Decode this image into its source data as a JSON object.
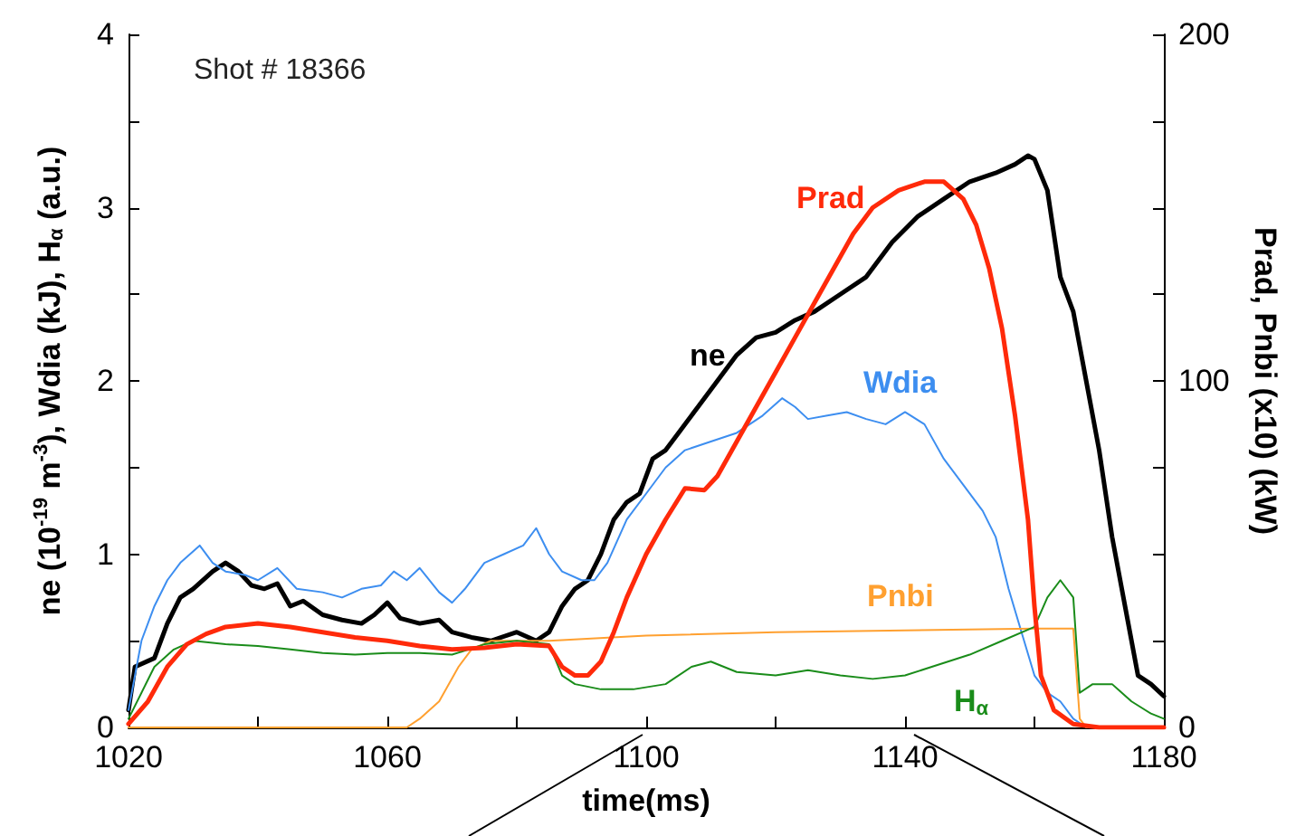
{
  "chart_data": {
    "type": "line",
    "xlabel": "time(ms)",
    "ylabel": "ne (10$^{-19}$ m$^{-3}$), Wdia (kJ), H$_{α}$ (a.u.)",
    "y2label": "Prad, Pnbi (x10) (kW)",
    "annotations": [
      "Shot # 18366"
    ],
    "xlim": [
      1020,
      1180
    ],
    "xticks": [
      1020,
      {
        "value": 1040,
        "label": null
      },
      1060,
      {
        "value": 1080,
        "label": null
      },
      1100,
      {
        "value": 1120,
        "label": null
      },
      1140,
      {
        "value": 1160,
        "label": null
      },
      1180
    ],
    "ylim": [
      0,
      4
    ],
    "yticks": [
      0,
      {
        "value": 0.5,
        "label": null
      },
      1,
      {
        "value": 1.5,
        "label": null
      },
      2,
      {
        "value": 2.5,
        "label": null
      },
      3,
      {
        "value": 3.5,
        "label": null
      },
      4
    ],
    "y2lim": [
      0,
      200
    ],
    "y2ticks": [
      0,
      {
        "value": 25,
        "label": null
      },
      {
        "value": 50,
        "label": null
      },
      {
        "value": 75,
        "label": null
      },
      100,
      {
        "value": 125,
        "label": null
      },
      {
        "value": 150,
        "label": null
      },
      {
        "value": 175,
        "label": null
      },
      200
    ],
    "grid": false,
    "legend": false,
    "marker": "none",
    "line_style": "solid",
    "series": [
      {
        "name": "ne",
        "color": "#000000",
        "x": [
          1020,
          1021,
          1024,
          1026,
          1028,
          1030,
          1033,
          1035,
          1037,
          1039,
          1041,
          1043,
          1045,
          1047,
          1050,
          1053,
          1056,
          1058,
          1060,
          1062,
          1065,
          1068,
          1070,
          1073,
          1076,
          1080,
          1083,
          1085,
          1087,
          1089,
          1091,
          1093,
          1095,
          1097,
          1099,
          1101,
          1103,
          1105,
          1108,
          1111,
          1114,
          1117,
          1120,
          1123,
          1126,
          1130,
          1134,
          1138,
          1142,
          1146,
          1150,
          1154,
          1157,
          1159,
          1160,
          1162,
          1164,
          1166,
          1168,
          1170,
          1172,
          1174,
          1176,
          1178,
          1180
        ],
        "values": [
          0.1,
          0.35,
          0.4,
          0.6,
          0.75,
          0.8,
          0.9,
          0.95,
          0.9,
          0.82,
          0.8,
          0.83,
          0.7,
          0.73,
          0.65,
          0.62,
          0.6,
          0.65,
          0.72,
          0.63,
          0.6,
          0.62,
          0.55,
          0.52,
          0.5,
          0.55,
          0.5,
          0.55,
          0.7,
          0.8,
          0.85,
          1.0,
          1.2,
          1.3,
          1.35,
          1.55,
          1.6,
          1.7,
          1.85,
          2.0,
          2.15,
          2.25,
          2.28,
          2.35,
          2.4,
          2.5,
          2.6,
          2.8,
          2.95,
          3.05,
          3.15,
          3.2,
          3.25,
          3.3,
          3.28,
          3.1,
          2.6,
          2.4,
          2.0,
          1.6,
          1.1,
          0.7,
          0.3,
          0.25,
          0.18
        ]
      },
      {
        "name": "Wdia",
        "color": "#3d8ef0",
        "x": [
          1020,
          1022,
          1024,
          1026,
          1028,
          1031,
          1033,
          1035,
          1038,
          1040,
          1043,
          1046,
          1050,
          1053,
          1056,
          1059,
          1061,
          1063,
          1065,
          1068,
          1070,
          1072,
          1075,
          1078,
          1081,
          1083,
          1085,
          1087,
          1090,
          1092,
          1094,
          1097,
          1100,
          1103,
          1106,
          1110,
          1114,
          1118,
          1121,
          1123,
          1125,
          1128,
          1131,
          1134,
          1137,
          1140,
          1143,
          1146,
          1149,
          1152,
          1154,
          1156,
          1158,
          1160,
          1162,
          1164,
          1166,
          1168,
          1180
        ],
        "values": [
          0.1,
          0.5,
          0.7,
          0.85,
          0.95,
          1.05,
          0.95,
          0.9,
          0.88,
          0.85,
          0.92,
          0.8,
          0.78,
          0.75,
          0.8,
          0.82,
          0.9,
          0.85,
          0.92,
          0.78,
          0.72,
          0.8,
          0.95,
          1.0,
          1.05,
          1.15,
          1.0,
          0.9,
          0.85,
          0.85,
          0.95,
          1.2,
          1.35,
          1.5,
          1.6,
          1.65,
          1.7,
          1.8,
          1.9,
          1.85,
          1.78,
          1.8,
          1.82,
          1.78,
          1.75,
          1.82,
          1.75,
          1.55,
          1.4,
          1.25,
          1.1,
          0.8,
          0.55,
          0.3,
          0.2,
          0.15,
          0.05,
          0,
          0
        ]
      },
      {
        "name": "Prad",
        "color": "#ff2a0a",
        "axis": "y2",
        "x": [
          1020,
          1023,
          1026,
          1029,
          1032,
          1035,
          1040,
          1045,
          1050,
          1055,
          1060,
          1065,
          1070,
          1075,
          1080,
          1085,
          1087,
          1089,
          1091,
          1093,
          1095,
          1097,
          1100,
          1103,
          1106,
          1109,
          1111,
          1114,
          1117,
          1120,
          1123,
          1126,
          1129,
          1132,
          1135,
          1139,
          1143,
          1146,
          1149,
          1151,
          1153,
          1155,
          1157,
          1159,
          1160,
          1161,
          1163,
          1166,
          1170,
          1180
        ],
        "values": [
          1,
          7.5,
          17.5,
          24,
          27,
          29,
          30,
          29,
          27.5,
          26,
          25,
          23.5,
          22.5,
          23,
          24,
          23.5,
          17.5,
          15,
          15,
          19,
          27.5,
          37.5,
          50,
          60,
          69,
          68.5,
          72.5,
          82.5,
          92.5,
          102.5,
          112.5,
          122.5,
          132.5,
          142.5,
          150,
          155,
          157.5,
          157.5,
          152.5,
          145,
          132.5,
          115,
          90,
          60,
          35,
          15,
          5,
          1,
          0,
          0
        ]
      },
      {
        "name": "Pnbi",
        "color": "#ffa030",
        "axis": "y2",
        "x": [
          1020,
          1063,
          1065,
          1068,
          1071,
          1073,
          1076,
          1085,
          1100,
          1120,
          1140,
          1160,
          1166,
          1167,
          1168,
          1180
        ],
        "values": [
          0,
          0,
          2.5,
          7.5,
          17.5,
          22.5,
          25,
          25,
          26.5,
          27.5,
          28,
          28.5,
          28.5,
          2.5,
          0,
          0
        ]
      },
      {
        "name": "H$_{α}$",
        "color": "#1a8c1a",
        "x": [
          1020,
          1022,
          1024,
          1027,
          1030,
          1035,
          1040,
          1045,
          1050,
          1055,
          1060,
          1065,
          1070,
          1075,
          1080,
          1085,
          1087,
          1089,
          1093,
          1098,
          1103,
          1107,
          1110,
          1114,
          1120,
          1125,
          1130,
          1135,
          1140,
          1145,
          1150,
          1155,
          1160,
          1162,
          1164,
          1166,
          1167,
          1169,
          1172,
          1175,
          1178,
          1180
        ],
        "values": [
          0.05,
          0.2,
          0.35,
          0.45,
          0.5,
          0.48,
          0.47,
          0.45,
          0.43,
          0.42,
          0.43,
          0.43,
          0.42,
          0.48,
          0.5,
          0.48,
          0.3,
          0.25,
          0.22,
          0.22,
          0.25,
          0.35,
          0.38,
          0.32,
          0.3,
          0.33,
          0.3,
          0.28,
          0.3,
          0.36,
          0.42,
          0.5,
          0.58,
          0.75,
          0.85,
          0.75,
          0.2,
          0.25,
          0.25,
          0.15,
          0.08,
          0.05
        ]
      }
    ]
  }
}
